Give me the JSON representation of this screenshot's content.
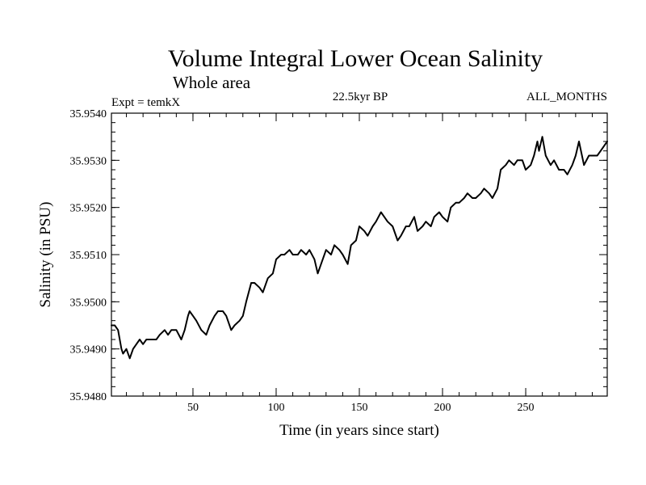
{
  "chart_data": {
    "type": "line",
    "title": "Volume Integral Lower Ocean Salinity",
    "subtitle": "Whole area",
    "info_left": "Expt = temkX",
    "info_center": "22.5kyr BP",
    "info_right": "ALL_MONTHS",
    "xlabel": "Time (in years since start)",
    "ylabel": "Salinity (in PSU)",
    "xlim": [
      1,
      299
    ],
    "ylim": [
      35.948,
      35.954
    ],
    "x_ticks": [
      50,
      100,
      150,
      200,
      250
    ],
    "x_tick_labels": [
      "50",
      "100",
      "150",
      "200",
      "250"
    ],
    "y_ticks": [
      35.948,
      35.949,
      35.95,
      35.951,
      35.952,
      35.953,
      35.954
    ],
    "y_tick_labels": [
      "35.9480",
      "35.9490",
      "35.9500",
      "35.9510",
      "35.9520",
      "35.9530",
      "35.9540"
    ],
    "series": [
      {
        "name": "salinity",
        "x": [
          1,
          3,
          5,
          6,
          7,
          8,
          10,
          12,
          14,
          16,
          18,
          20,
          22,
          25,
          28,
          30,
          33,
          35,
          37,
          40,
          43,
          45,
          47,
          48,
          50,
          52,
          55,
          58,
          60,
          63,
          65,
          68,
          70,
          73,
          75,
          78,
          80,
          82,
          85,
          87,
          90,
          92,
          95,
          98,
          100,
          103,
          105,
          108,
          110,
          113,
          115,
          118,
          120,
          123,
          125,
          127,
          130,
          133,
          135,
          138,
          140,
          143,
          145,
          148,
          150,
          153,
          155,
          158,
          160,
          163,
          165,
          167,
          170,
          173,
          175,
          178,
          180,
          183,
          185,
          188,
          190,
          193,
          195,
          198,
          200,
          203,
          205,
          208,
          210,
          213,
          215,
          218,
          220,
          223,
          225,
          228,
          230,
          233,
          235,
          238,
          240,
          243,
          245,
          248,
          250,
          253,
          255,
          257,
          258,
          260,
          262,
          265,
          267,
          270,
          273,
          275,
          278,
          280,
          282,
          285,
          288,
          290,
          293,
          295,
          297,
          299
        ],
        "y": [
          35.9495,
          35.9495,
          35.9494,
          35.9492,
          35.949,
          35.9489,
          35.949,
          35.9488,
          35.949,
          35.9491,
          35.9492,
          35.9491,
          35.9492,
          35.9492,
          35.9492,
          35.9493,
          35.9494,
          35.9493,
          35.9494,
          35.9494,
          35.9492,
          35.9494,
          35.9497,
          35.9498,
          35.9497,
          35.9496,
          35.9494,
          35.9493,
          35.9495,
          35.9497,
          35.9498,
          35.9498,
          35.9497,
          35.9494,
          35.9495,
          35.9496,
          35.9497,
          35.95,
          35.9504,
          35.9504,
          35.9503,
          35.9502,
          35.9505,
          35.9506,
          35.9509,
          35.951,
          35.951,
          35.9511,
          35.951,
          35.951,
          35.9511,
          35.951,
          35.9511,
          35.9509,
          35.9506,
          35.9508,
          35.9511,
          35.951,
          35.9512,
          35.9511,
          35.951,
          35.9508,
          35.9512,
          35.9513,
          35.9516,
          35.9515,
          35.9514,
          35.9516,
          35.9517,
          35.9519,
          35.9518,
          35.9517,
          35.9516,
          35.9513,
          35.9514,
          35.9516,
          35.9516,
          35.9518,
          35.9515,
          35.9516,
          35.9517,
          35.9516,
          35.9518,
          35.9519,
          35.9518,
          35.9517,
          35.952,
          35.9521,
          35.9521,
          35.9522,
          35.9523,
          35.9522,
          35.9522,
          35.9523,
          35.9524,
          35.9523,
          35.9522,
          35.9524,
          35.9528,
          35.9529,
          35.953,
          35.9529,
          35.953,
          35.953,
          35.9528,
          35.9529,
          35.9531,
          35.9534,
          35.9532,
          35.9535,
          35.9531,
          35.9529,
          35.953,
          35.9528,
          35.9528,
          35.9527,
          35.9529,
          35.9531,
          35.9534,
          35.9529,
          35.9531,
          35.9531,
          35.9531,
          35.9532,
          35.9533,
          35.9534
        ]
      }
    ]
  }
}
